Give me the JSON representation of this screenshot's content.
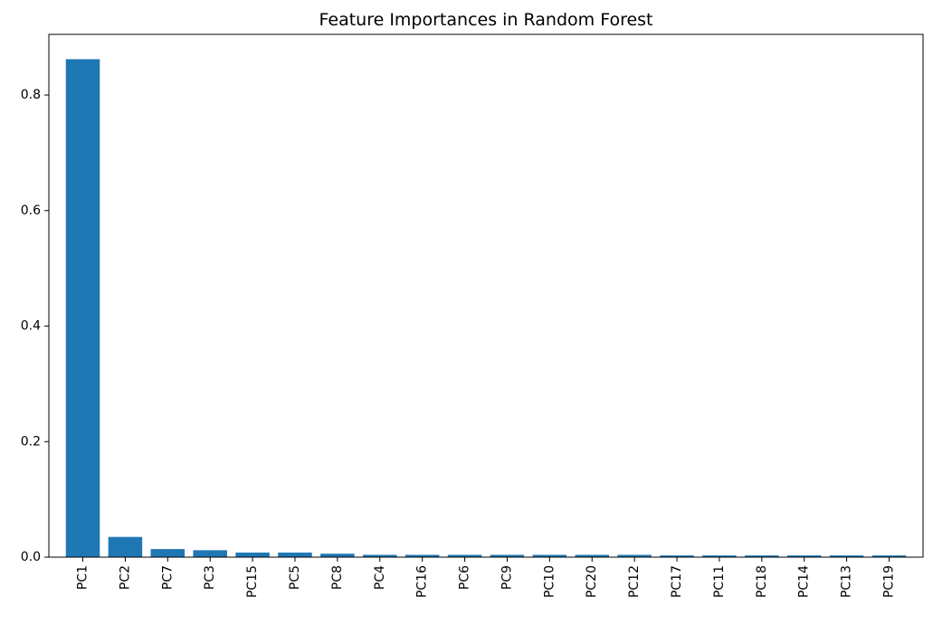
{
  "chart_data": {
    "type": "bar",
    "title": "Feature Importances in Random Forest",
    "xlabel": "",
    "ylabel": "",
    "categories": [
      "PC1",
      "PC2",
      "PC7",
      "PC3",
      "PC15",
      "PC5",
      "PC8",
      "PC4",
      "PC16",
      "PC6",
      "PC9",
      "PC10",
      "PC20",
      "PC12",
      "PC17",
      "PC11",
      "PC18",
      "PC14",
      "PC13",
      "PC19"
    ],
    "values": [
      0.862,
      0.035,
      0.014,
      0.012,
      0.008,
      0.008,
      0.006,
      0.004,
      0.004,
      0.004,
      0.004,
      0.004,
      0.004,
      0.004,
      0.003,
      0.003,
      0.003,
      0.003,
      0.003,
      0.003
    ],
    "ylim": [
      0,
      0.905
    ],
    "yticks": [
      0.0,
      0.2,
      0.4,
      0.6,
      0.8
    ],
    "ytick_labels": [
      "0.0",
      "0.2",
      "0.4",
      "0.6",
      "0.8"
    ],
    "bar_color": "#1f77b4",
    "grid": false,
    "legend": "none"
  }
}
